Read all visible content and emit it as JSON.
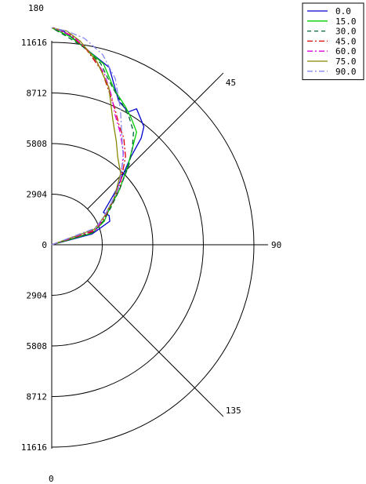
{
  "chart_data": {
    "type": "polar-half",
    "angle_unit": "degrees",
    "r_range": [
      0,
      11616
    ],
    "radial_ticks_left": [
      "11616",
      "8712",
      "5808",
      "2904",
      "0",
      "2904",
      "5808",
      "8712",
      "11616"
    ],
    "angle_labels": [
      {
        "angle": 180,
        "label": "180"
      },
      {
        "angle": 135,
        "label": "135"
      },
      {
        "angle": 90,
        "label": "90"
      },
      {
        "angle": 45,
        "label": "45"
      },
      {
        "angle": 0,
        "label": "0"
      }
    ],
    "legend": {
      "position": "top-right",
      "entries": [
        "0.0",
        "15.0",
        "30.0",
        "45.0",
        "60.0",
        "75.0",
        "90.0"
      ]
    },
    "series": [
      {
        "name": "0.0",
        "color": "#0000cc",
        "dash": "solid",
        "points": [
          [
            90,
            0
          ],
          [
            75,
            2400
          ],
          [
            68,
            3600
          ],
          [
            63,
            3700
          ],
          [
            58,
            3500
          ],
          [
            50,
            4800
          ],
          [
            42,
            6800
          ],
          [
            40,
            8000
          ],
          [
            38,
            8600
          ],
          [
            32,
            9200
          ],
          [
            30,
            8800
          ],
          [
            25,
            9100
          ],
          [
            18,
            10700
          ],
          [
            11,
            11300
          ],
          [
            6,
            11900
          ],
          [
            3,
            12300
          ],
          [
            0,
            12450
          ]
        ]
      },
      {
        "name": "15.0",
        "color": "#00cc00",
        "dash": "solid",
        "points": [
          [
            90,
            0
          ],
          [
            74,
            2400
          ],
          [
            66,
            3300
          ],
          [
            58,
            3900
          ],
          [
            51,
            5000
          ],
          [
            44,
            6300
          ],
          [
            40,
            7200
          ],
          [
            37,
            8100
          ],
          [
            32,
            8600
          ],
          [
            28,
            9000
          ],
          [
            22,
            9600
          ],
          [
            16,
            10800
          ],
          [
            10,
            11400
          ],
          [
            5,
            12000
          ],
          [
            0,
            12450
          ]
        ]
      },
      {
        "name": "30.0",
        "color": "#006633",
        "dash": "dashed",
        "points": [
          [
            90,
            0
          ],
          [
            73,
            2500
          ],
          [
            65,
            3300
          ],
          [
            58,
            4000
          ],
          [
            51,
            5000
          ],
          [
            44,
            6400
          ],
          [
            40,
            7200
          ],
          [
            36,
            8000
          ],
          [
            31,
            8600
          ],
          [
            27,
            9000
          ],
          [
            21,
            9700
          ],
          [
            15,
            10800
          ],
          [
            9,
            11500
          ],
          [
            4,
            12000
          ],
          [
            0,
            12450
          ]
        ]
      },
      {
        "name": "45.0",
        "color": "#dd0000",
        "dash": "dashdot",
        "points": [
          [
            90,
            0
          ],
          [
            72,
            2600
          ],
          [
            64,
            3300
          ],
          [
            57,
            4000
          ],
          [
            49,
            5200
          ],
          [
            40,
            6600
          ],
          [
            34,
            7400
          ],
          [
            30,
            7800
          ],
          [
            25,
            8600
          ],
          [
            21,
            9300
          ],
          [
            16,
            10400
          ],
          [
            10,
            11400
          ],
          [
            5,
            12100
          ],
          [
            0,
            12500
          ]
        ]
      },
      {
        "name": "60.0",
        "color": "#dd00dd",
        "dash": "dashdot",
        "points": [
          [
            90,
            0
          ],
          [
            71,
            2700
          ],
          [
            62,
            3400
          ],
          [
            55,
            4200
          ],
          [
            47,
            5400
          ],
          [
            38,
            6700
          ],
          [
            31,
            7600
          ],
          [
            26,
            8300
          ],
          [
            22,
            9200
          ],
          [
            17,
            10300
          ],
          [
            11,
            11300
          ],
          [
            6,
            12000
          ],
          [
            0,
            12500
          ]
        ]
      },
      {
        "name": "75.0",
        "color": "#888800",
        "dash": "solid",
        "points": [
          [
            90,
            0
          ],
          [
            70,
            2600
          ],
          [
            62,
            3400
          ],
          [
            53,
            4500
          ],
          [
            44,
            5700
          ],
          [
            37,
            6300
          ],
          [
            32,
            7000
          ],
          [
            26,
            8000
          ],
          [
            20,
            9600
          ],
          [
            14,
            10800
          ],
          [
            8,
            11800
          ],
          [
            4,
            12300
          ],
          [
            0,
            12450
          ]
        ]
      },
      {
        "name": "90.0",
        "color": "#8888ee",
        "dash": "dashdot",
        "points": [
          [
            90,
            0
          ],
          [
            69,
            2700
          ],
          [
            60,
            3600
          ],
          [
            50,
            5000
          ],
          [
            40,
            6400
          ],
          [
            33,
            7400
          ],
          [
            27,
            8700
          ],
          [
            21,
            10200
          ],
          [
            15,
            11300
          ],
          [
            9,
            12000
          ],
          [
            4,
            12300
          ],
          [
            0,
            12450
          ]
        ]
      }
    ]
  }
}
